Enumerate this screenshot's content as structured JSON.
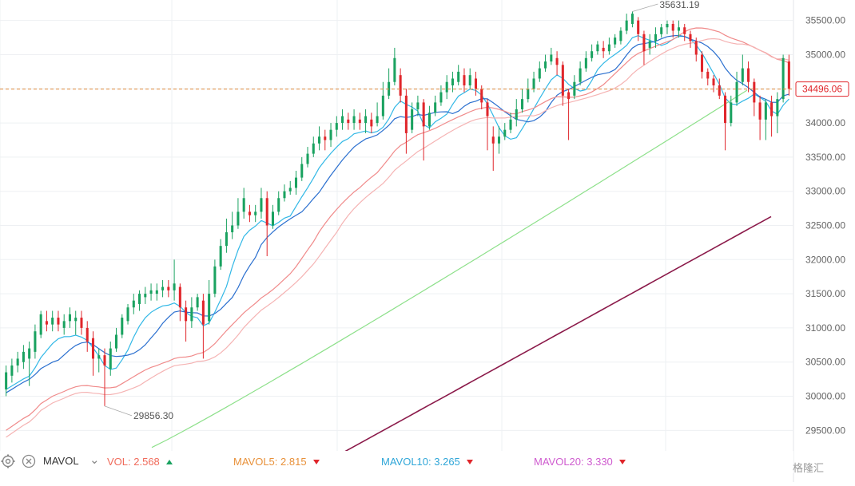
{
  "chart_data": {
    "type": "candlestick",
    "ylim": [
      29200,
      35800
    ],
    "y_ticks": [
      "35500.00",
      "35000.00",
      "34500.00",
      "34000.00",
      "33500.00",
      "33000.00",
      "32500.00",
      "32000.00",
      "31500.00",
      "31000.00",
      "30500.00",
      "30000.00",
      "29500.00"
    ],
    "y_tick_values": [
      35500,
      35000,
      34500,
      34000,
      33500,
      33000,
      32500,
      32000,
      31500,
      31000,
      30500,
      30000,
      29500
    ],
    "current_price": "34496.06",
    "current_value": 34496.06,
    "high_label": "35631.19",
    "high_value": 35631.19,
    "low_label": "29856.30",
    "low_value": 29856.3,
    "candles": [
      [
        30100,
        30350,
        30000,
        30450
      ],
      [
        30300,
        30450,
        30200,
        30550
      ],
      [
        30450,
        30550,
        30350,
        30650
      ],
      [
        30500,
        30650,
        30400,
        30750
      ],
      [
        30550,
        30700,
        30150,
        30800
      ],
      [
        30650,
        30950,
        30550,
        31050
      ],
      [
        30900,
        31200,
        30850,
        31250
      ],
      [
        31100,
        31050,
        30950,
        31250
      ],
      [
        31050,
        31150,
        30950,
        31250
      ],
      [
        31150,
        31050,
        30950,
        31250
      ],
      [
        31000,
        31100,
        30900,
        31200
      ],
      [
        31100,
        31200,
        31000,
        31300
      ],
      [
        31100,
        31150,
        30900,
        31250
      ],
      [
        31150,
        31000,
        30900,
        31250
      ],
      [
        31000,
        30800,
        30650,
        31100
      ],
      [
        30850,
        30550,
        30300,
        30950
      ],
      [
        30550,
        30600,
        30350,
        30700
      ],
      [
        30600,
        30450,
        29856.3,
        30700
      ],
      [
        30400,
        30700,
        30300,
        30800
      ],
      [
        30700,
        30900,
        30650,
        31000
      ],
      [
        30900,
        31150,
        30850,
        31200
      ],
      [
        31100,
        31300,
        31050,
        31350
      ],
      [
        31300,
        31400,
        31200,
        31500
      ],
      [
        31350,
        31500,
        31250,
        31550
      ],
      [
        31450,
        31500,
        31350,
        31600
      ],
      [
        31500,
        31550,
        31400,
        31650
      ],
      [
        31500,
        31550,
        31400,
        31650
      ],
      [
        31550,
        31600,
        31450,
        31700
      ],
      [
        31600,
        31550,
        31450,
        31700
      ],
      [
        31550,
        31650,
        31400,
        32000
      ],
      [
        31600,
        31300,
        31100,
        31650
      ],
      [
        31300,
        31100,
        30800,
        31400
      ],
      [
        31100,
        31300,
        31000,
        31450
      ],
      [
        31300,
        31450,
        31250,
        31500
      ],
      [
        31400,
        31050,
        30550,
        31500
      ],
      [
        31100,
        31500,
        31050,
        31700
      ],
      [
        31500,
        31900,
        31450,
        32000
      ],
      [
        31900,
        32200,
        31850,
        32300
      ],
      [
        32200,
        32400,
        32100,
        32600
      ],
      [
        32400,
        32500,
        32300,
        32700
      ],
      [
        32500,
        32700,
        32450,
        32900
      ],
      [
        32700,
        32900,
        32600,
        33050
      ],
      [
        32700,
        32650,
        32550,
        32800
      ],
      [
        32650,
        32700,
        32550,
        32800
      ],
      [
        32700,
        32900,
        32600,
        33050
      ],
      [
        32900,
        32500,
        32050,
        33000
      ],
      [
        32500,
        32700,
        32450,
        32800
      ],
      [
        32700,
        32900,
        32650,
        33000
      ],
      [
        32900,
        33000,
        32850,
        33100
      ],
      [
        33000,
        33050,
        32950,
        33150
      ],
      [
        33050,
        33200,
        32950,
        33300
      ],
      [
        33200,
        33400,
        33150,
        33500
      ],
      [
        33400,
        33550,
        33350,
        33650
      ],
      [
        33550,
        33700,
        33500,
        33800
      ],
      [
        33700,
        33800,
        33600,
        33950
      ],
      [
        33800,
        33750,
        33600,
        33900
      ],
      [
        33750,
        33900,
        33650,
        34000
      ],
      [
        33900,
        34000,
        33800,
        34100
      ],
      [
        34000,
        34100,
        33900,
        34200
      ],
      [
        34050,
        34000,
        33900,
        34150
      ],
      [
        34000,
        34100,
        33900,
        34200
      ],
      [
        34050,
        34000,
        33900,
        34150
      ],
      [
        34000,
        34100,
        33850,
        34200
      ],
      [
        34050,
        33950,
        33850,
        34150
      ],
      [
        34000,
        34100,
        33950,
        34300
      ],
      [
        34100,
        34400,
        34050,
        34600
      ],
      [
        34400,
        34600,
        34350,
        34800
      ],
      [
        34600,
        34950,
        34550,
        35100
      ],
      [
        34700,
        34400,
        34300,
        34800
      ],
      [
        34400,
        33850,
        33550,
        34500
      ],
      [
        33900,
        34200,
        33850,
        34300
      ],
      [
        34200,
        34300,
        34100,
        34400
      ],
      [
        34300,
        33950,
        33450,
        34350
      ],
      [
        33950,
        34150,
        33900,
        34250
      ],
      [
        34150,
        34300,
        34100,
        34400
      ],
      [
        34300,
        34450,
        34250,
        34550
      ],
      [
        34450,
        34600,
        34350,
        34700
      ],
      [
        34550,
        34650,
        34450,
        34750
      ],
      [
        34600,
        34750,
        34550,
        34850
      ],
      [
        34700,
        34550,
        34450,
        34800
      ],
      [
        34550,
        34700,
        34500,
        34800
      ],
      [
        34650,
        34500,
        34400,
        34750
      ],
      [
        34500,
        34300,
        34200,
        34550
      ],
      [
        34300,
        34100,
        33600,
        34350
      ],
      [
        33800,
        33700,
        33300,
        33950
      ],
      [
        33700,
        33800,
        33550,
        33950
      ],
      [
        33800,
        33900,
        33750,
        34000
      ],
      [
        33900,
        34050,
        33850,
        34150
      ],
      [
        34050,
        34200,
        33950,
        34350
      ],
      [
        34200,
        34350,
        34150,
        34500
      ],
      [
        34350,
        34500,
        34300,
        34650
      ],
      [
        34500,
        34650,
        34450,
        34750
      ],
      [
        34650,
        34800,
        34600,
        34900
      ],
      [
        34800,
        34900,
        34750,
        35000
      ],
      [
        34900,
        35000,
        34850,
        35100
      ],
      [
        34950,
        34850,
        34700,
        35050
      ],
      [
        34850,
        34400,
        34250,
        34900
      ],
      [
        34450,
        34350,
        33750,
        34500
      ],
      [
        34400,
        34600,
        34350,
        34700
      ],
      [
        34600,
        34800,
        34550,
        34900
      ],
      [
        34800,
        34950,
        34750,
        35050
      ],
      [
        34950,
        35050,
        34900,
        35150
      ],
      [
        35050,
        35150,
        35000,
        35200
      ],
      [
        35100,
        35050,
        34950,
        35200
      ],
      [
        35050,
        35150,
        35000,
        35250
      ],
      [
        35150,
        35250,
        35100,
        35300
      ],
      [
        35200,
        35350,
        35150,
        35400
      ],
      [
        35350,
        35500,
        35300,
        35600
      ],
      [
        35450,
        35600,
        35400,
        35631.19
      ],
      [
        35500,
        35300,
        35200,
        35550
      ],
      [
        35300,
        35050,
        34850,
        35350
      ],
      [
        35100,
        35200,
        35000,
        35300
      ],
      [
        35200,
        35300,
        35100,
        35400
      ],
      [
        35300,
        35400,
        35250,
        35450
      ],
      [
        35400,
        35450,
        35300,
        35500
      ],
      [
        35450,
        35350,
        35250,
        35500
      ],
      [
        35350,
        35400,
        35250,
        35500
      ],
      [
        35400,
        35300,
        35200,
        35450
      ],
      [
        35300,
        35200,
        35100,
        35350
      ],
      [
        35200,
        35000,
        34900,
        35250
      ],
      [
        35000,
        34750,
        34650,
        35050
      ],
      [
        34750,
        34650,
        34550,
        34800
      ],
      [
        34650,
        34550,
        34450,
        34700
      ],
      [
        34550,
        34400,
        34350,
        34650
      ],
      [
        34400,
        34000,
        33600,
        34450
      ],
      [
        34000,
        34300,
        33950,
        34400
      ],
      [
        34300,
        34600,
        34250,
        34750
      ],
      [
        34600,
        34800,
        34550,
        35000
      ],
      [
        34800,
        34600,
        34450,
        34900
      ],
      [
        34600,
        34300,
        34100,
        34650
      ],
      [
        34300,
        34050,
        33750,
        34400
      ],
      [
        34050,
        34300,
        33750,
        34350
      ],
      [
        34300,
        34100,
        33800,
        34400
      ],
      [
        34100,
        34350,
        33850,
        34450
      ],
      [
        34350,
        34950,
        34300,
        35000
      ],
      [
        34900,
        34500,
        34400,
        35000
      ]
    ],
    "ma_series": [
      {
        "color": "#32b8e6",
        "start": 30100,
        "end": 34350
      },
      {
        "color": "#2a6fcf",
        "start": 30050,
        "end": 34420
      },
      {
        "color": "#f08a8a",
        "start": 29500,
        "end": 34880
      },
      {
        "color": "#f5b3b3",
        "start": 29400,
        "end": 34920
      },
      {
        "color": "#8de08a",
        "start": 29250,
        "end": 34480
      },
      {
        "color": "#8b1a4a",
        "start": 29180,
        "end": 32630
      }
    ]
  },
  "indicator_bar": {
    "name": "MAVOL",
    "items": [
      {
        "label": "VOL:",
        "value": "2.568",
        "color": "#f06b5b",
        "dir": "up"
      },
      {
        "label": "MAVOL5:",
        "value": "2.815",
        "color": "#e8913a",
        "dir": "down"
      },
      {
        "label": "MAVOL10:",
        "value": "3.265",
        "color": "#2fa6d8",
        "dir": "down"
      },
      {
        "label": "MAVOL20:",
        "value": "3.330",
        "color": "#cf5ccf",
        "dir": "down"
      }
    ]
  },
  "watermark": "格隆汇",
  "colors": {
    "up": "#1aa260",
    "down": "#e0262b",
    "grid": "#eef0f3",
    "price_line": "#e08a3c",
    "price_box": "#e0262b"
  }
}
